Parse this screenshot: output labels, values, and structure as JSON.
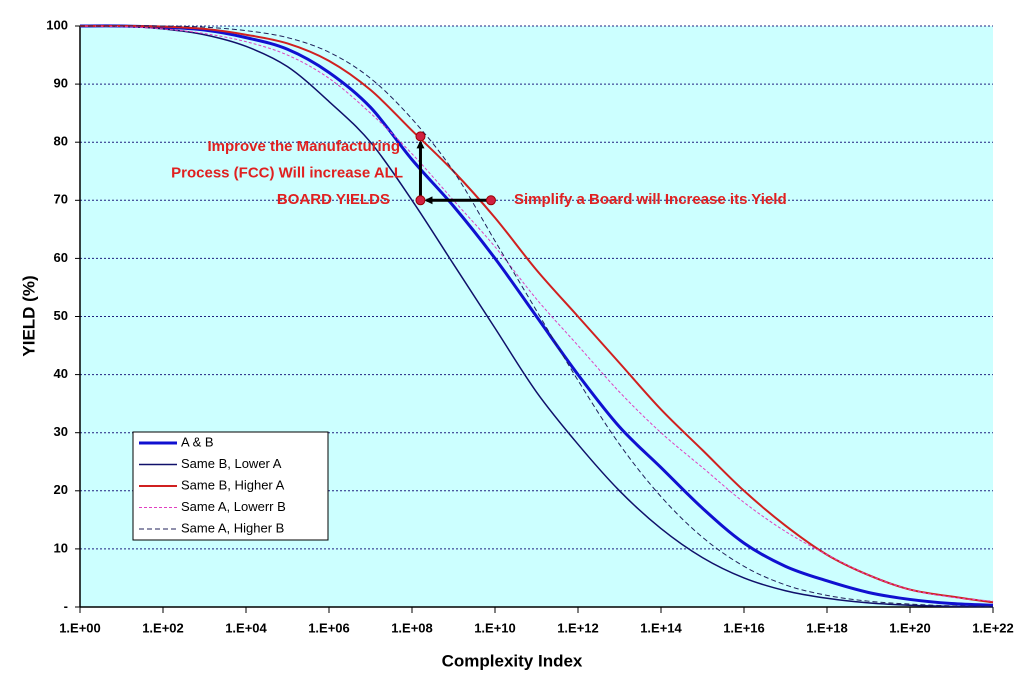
{
  "chart_data": {
    "type": "line",
    "x_label": "Complexity Index",
    "y_label": "YIELD (%)",
    "log_x": true,
    "grid": true,
    "background": "#ccffff",
    "legend_position": "lower left",
    "x": [
      1.0,
      10.0,
      100.0,
      1000.0,
      10000.0,
      100000.0,
      1000000.0,
      10000000.0,
      100000000.0,
      1000000000.0,
      10000000000.0,
      100000000000.0,
      1000000000000.0,
      10000000000000.0,
      100000000000000.0,
      1000000000000000.0,
      1e+16,
      1e+17,
      1e+18,
      1e+19,
      1e+20,
      1e+21,
      1e+22
    ],
    "series": [
      {
        "name": "A & B",
        "color": "#1010d0",
        "width": 3,
        "dash": "none",
        "values": [
          100,
          100,
          99.8,
          99.3,
          98,
          96,
          92,
          86,
          77,
          69,
          60,
          50,
          40,
          31,
          24,
          17,
          11,
          7,
          4.5,
          2.5,
          1.3,
          0.6,
          0.3
        ]
      },
      {
        "name": "Same B, Lower A",
        "color": "#10106a",
        "width": 1.5,
        "dash": "none",
        "values": [
          100,
          100,
          99.5,
          98.5,
          96.5,
          93,
          87,
          80,
          70,
          59,
          48,
          37,
          28,
          20,
          13.5,
          8.5,
          5,
          2.8,
          1.5,
          0.7,
          0.3,
          0.1,
          0.05
        ]
      },
      {
        "name": "Same B, Higher A",
        "color": "#d02020",
        "width": 2,
        "dash": "none",
        "values": [
          100,
          100,
          99.9,
          99.5,
          98.5,
          97,
          94,
          89,
          82,
          75,
          67,
          58,
          50,
          42,
          34,
          27,
          20,
          14,
          9,
          5.5,
          3,
          1.8,
          0.8
        ]
      },
      {
        "name": "Same A, Lowerr B",
        "color": "#e040c0",
        "width": 1,
        "dash": "3,2",
        "values": [
          100,
          99.9,
          99.5,
          98.7,
          97.3,
          95,
          91,
          85,
          78,
          70,
          62,
          53,
          45,
          37,
          30,
          24,
          18,
          13,
          9,
          5.5,
          3,
          1.7,
          1
        ]
      },
      {
        "name": "Same A, Higher B",
        "color": "#20205a",
        "width": 1,
        "dash": "5,3",
        "values": [
          100,
          100,
          100,
          99.8,
          99.2,
          98,
          95.5,
          91,
          84,
          75,
          63,
          51,
          39,
          28,
          19,
          12,
          7,
          3.8,
          2,
          1,
          0.5,
          0.2,
          0.1
        ]
      }
    ],
    "xlim": [
      1.0,
      1e+22
    ],
    "ylim": [
      0,
      100
    ],
    "xticks": [
      {
        "value": 1.0,
        "label": "1.E+00"
      },
      {
        "value": 100.0,
        "label": "1.E+02"
      },
      {
        "value": 10000.0,
        "label": "1.E+04"
      },
      {
        "value": 1000000.0,
        "label": "1.E+06"
      },
      {
        "value": 100000000.0,
        "label": "1.E+08"
      },
      {
        "value": 10000000000.0,
        "label": "1.E+10"
      },
      {
        "value": 1000000000000.0,
        "label": "1.E+12"
      },
      {
        "value": 100000000000000.0,
        "label": "1.E+14"
      },
      {
        "value": 1e+16,
        "label": "1.E+16"
      },
      {
        "value": 1e+18,
        "label": "1.E+18"
      },
      {
        "value": 1e+20,
        "label": "1.E+20"
      },
      {
        "value": 1e+22,
        "label": "1.E+22"
      }
    ],
    "yticks": [
      {
        "value": 0,
        "label": "-"
      },
      10,
      20,
      30,
      40,
      50,
      60,
      70,
      80,
      90,
      100
    ],
    "markers": [
      {
        "x": 160000000.0,
        "y": 70
      },
      {
        "x": 160000000.0,
        "y": 81
      },
      {
        "x": 8000000000.0,
        "y": 70
      }
    ],
    "annotations": [
      {
        "lines": [
          "Improve the Manufacturing",
          "Process (FCC) Will increase ALL",
          "BOARD YIELDS"
        ],
        "color": "#e02020"
      },
      {
        "text": "Simplify a Board will Increase its Yield",
        "color": "#e02020"
      }
    ]
  }
}
